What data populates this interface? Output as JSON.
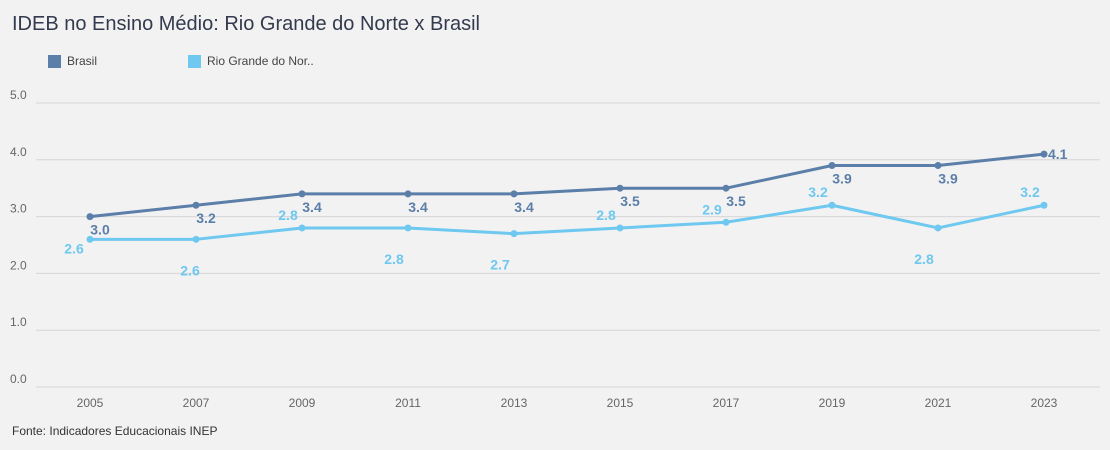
{
  "chart_data": {
    "type": "line",
    "title": "IDEB no Ensino Médio: Rio Grande do Norte x Brasil",
    "categories": [
      "2005",
      "2007",
      "2009",
      "2011",
      "2013",
      "2015",
      "2017",
      "2019",
      "2021",
      "2023"
    ],
    "series": [
      {
        "name": "Brasil",
        "color": "#5b7fa8",
        "values": [
          3.0,
          3.2,
          3.4,
          3.4,
          3.4,
          3.5,
          3.5,
          3.9,
          3.9,
          4.1
        ],
        "labels": [
          "3.0",
          "3.2",
          "3.4",
          "3.4",
          "3.4",
          "3.5",
          "3.5",
          "3.9",
          "3.9",
          "4.1"
        ]
      },
      {
        "name": "Rio Grande do Nor..",
        "color": "#6ec8ef",
        "values": [
          2.6,
          2.6,
          2.8,
          2.8,
          2.7,
          2.8,
          2.9,
          3.2,
          2.8,
          3.2
        ],
        "labels": [
          "2.6",
          "2.6",
          "2.8",
          "2.8",
          "2.7",
          "2.8",
          "2.9",
          "3.2",
          "2.8",
          "3.2"
        ]
      }
    ],
    "ylim": [
      0,
      5
    ],
    "yticks": [
      "0.0",
      "1.0",
      "2.0",
      "3.0",
      "4.0",
      "5.0"
    ],
    "grid": true,
    "legend_position": "top-left",
    "source": "Fonte: Indicadores Educacionais INEP"
  }
}
